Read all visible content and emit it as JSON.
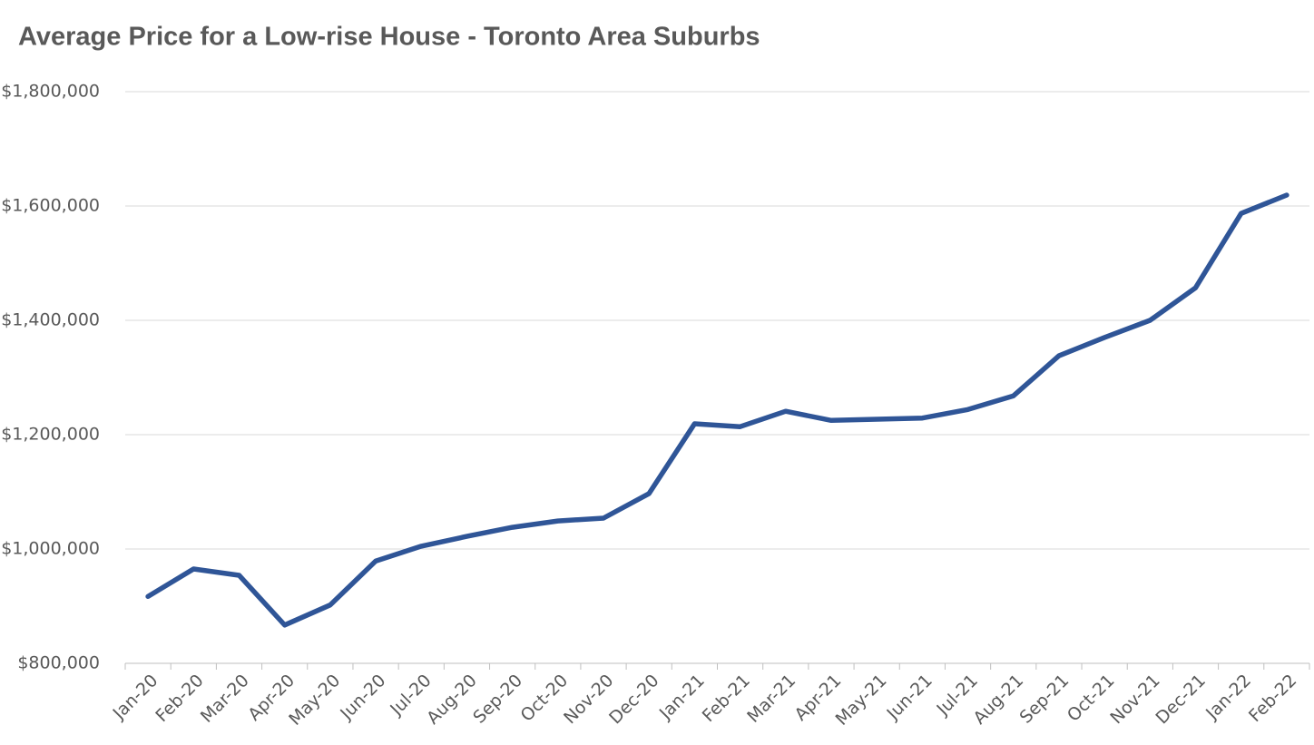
{
  "chart_data": {
    "type": "line",
    "title": "Average Price for a Low-rise House - Toronto Area Suburbs",
    "categories": [
      "Jan-20",
      "Feb-20",
      "Mar-20",
      "Apr-20",
      "May-20",
      "Jun-20",
      "Jul-20",
      "Aug-20",
      "Sep-20",
      "Oct-20",
      "Nov-20",
      "Dec-20",
      "Jan-21",
      "Feb-21",
      "Mar-21",
      "Apr-21",
      "May-21",
      "Jun-21",
      "Jul-21",
      "Aug-21",
      "Sep-21",
      "Oct-21",
      "Nov-21",
      "Dec-21",
      "Jan-22",
      "Feb-22"
    ],
    "series": [
      {
        "name": "Average Price",
        "color": "#2f5597",
        "values": [
          917000,
          965000,
          954000,
          867000,
          902000,
          979000,
          1005000,
          1022000,
          1038000,
          1049000,
          1054000,
          1097000,
          1219000,
          1214000,
          1241000,
          1225000,
          1227000,
          1229000,
          1244000,
          1268000,
          1338000,
          1370000,
          1400000,
          1457000,
          1587000,
          1619000
        ]
      }
    ],
    "ylim": [
      800000,
      1800000
    ],
    "yticks": [
      {
        "value": 800000,
        "label": "$800,000"
      },
      {
        "value": 1000000,
        "label": "$1,000,000"
      },
      {
        "value": 1200000,
        "label": "$1,200,000"
      },
      {
        "value": 1400000,
        "label": "$1,400,000"
      },
      {
        "value": 1600000,
        "label": "$1,600,000"
      },
      {
        "value": 1800000,
        "label": "$1,800,000"
      }
    ],
    "grid": true
  }
}
